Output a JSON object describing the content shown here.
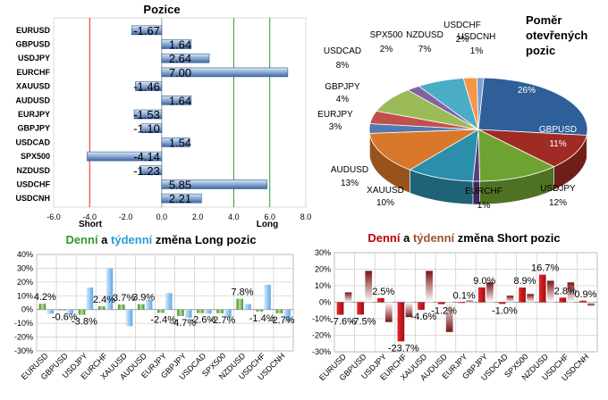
{
  "chart_data": [
    {
      "type": "bar",
      "orientation": "horizontal",
      "title": "Pozice",
      "categories": [
        "EURUSD",
        "GBPUSD",
        "USDJPY",
        "EURCHF",
        "XAUUSD",
        "AUDUSD",
        "EURJPY",
        "GBPJPY",
        "USDCAD",
        "SPX500",
        "NZDUSD",
        "USDCHF",
        "USDCNH"
      ],
      "values": [
        -1.67,
        1.64,
        2.64,
        7.0,
        -1.46,
        1.64,
        -1.53,
        -1.1,
        1.54,
        -4.14,
        -1.23,
        5.85,
        2.21
      ],
      "value_labels": [
        "-1.67",
        "1.64",
        "2.64",
        "7.00",
        "-1.46",
        "1.64",
        "-1.53",
        "-1.10",
        "1.54",
        "-4.14",
        "-1.23",
        "5.85",
        "2.21"
      ],
      "xlim": [
        -6,
        8
      ],
      "ticks": [
        "-6.0",
        "-4.0",
        "-2.0",
        "0.0",
        "2.0",
        "4.0",
        "6.0",
        "8.0"
      ],
      "short_label": "Short",
      "long_label": "Long",
      "bar_color": "#4f81bd"
    },
    {
      "type": "pie",
      "title_lines": [
        "Poměr",
        "otevřených",
        "pozic"
      ],
      "slices": [
        {
          "name": "EURUSD",
          "value": 26,
          "label": "26%",
          "color": "#2e5f99"
        },
        {
          "name": "GBPUSD",
          "value": 11,
          "label": "11%",
          "color": "#a02b24"
        },
        {
          "name": "USDJPY",
          "value": 12,
          "label": "12%",
          "color": "#6fa331"
        },
        {
          "name": "EURCHF",
          "value": 1,
          "label": "1%",
          "color": "#5a3b80"
        },
        {
          "name": "XAUUSD",
          "value": 10,
          "label": "10%",
          "color": "#2b8eaa"
        },
        {
          "name": "AUDUSD",
          "value": 13,
          "label": "13%",
          "color": "#d9772a"
        },
        {
          "name": "EURJPY",
          "value": 3,
          "label": "3%",
          "color": "#5478b0"
        },
        {
          "name": "GBPJPY",
          "value": 4,
          "label": "4%",
          "color": "#c0504d"
        },
        {
          "name": "USDCAD",
          "value": 8,
          "label": "8%",
          "color": "#9bbb59"
        },
        {
          "name": "SPX500",
          "value": 2,
          "label": "2%",
          "color": "#8064a2"
        },
        {
          "name": "NZDUSD",
          "value": 7,
          "label": "7%",
          "color": "#4bacc6"
        },
        {
          "name": "USDCHF",
          "value": 2,
          "label": "2%",
          "color": "#f79646"
        },
        {
          "name": "USDCNH",
          "value": 1,
          "label": "1%",
          "color": "#7f9fd0"
        }
      ]
    },
    {
      "type": "bar",
      "title_parts": [
        "Denní",
        " a ",
        "týdenní",
        " změna Long pozic"
      ],
      "title_colors": [
        "#2e9a2e",
        "#000000",
        "#2d9ad6",
        "#000000"
      ],
      "categories": [
        "EURUSD",
        "GBPUSD",
        "USDJPY",
        "EURCHF",
        "XAUUSD",
        "AUDUSD",
        "EURJPY",
        "GBPJPY",
        "USDCAD",
        "SPX500",
        "NZDUSD",
        "USDCHF",
        "USDCNH"
      ],
      "series": [
        {
          "name": "Denní",
          "color": "#5aa033",
          "values": [
            4.2,
            -0.6,
            -3.8,
            2.4,
            3.7,
            3.9,
            -2.4,
            -4.7,
            -2.6,
            -2.7,
            7.8,
            -1.4,
            -2.7
          ]
        },
        {
          "name": "Týdenní",
          "color": "#6fb3ea",
          "values": [
            -3,
            -3,
            16,
            30,
            -12,
            7,
            12,
            -6,
            -3,
            -6,
            4,
            18,
            -9
          ]
        }
      ],
      "data_labels": [
        "4.2%",
        "-0.6%",
        "-3.8%",
        "2.4%",
        "3.7%",
        "3.9%",
        "-2.4%",
        "-4.7%",
        "-2.6%",
        "-2.7%",
        "7.8%",
        "-1.4%",
        "-2.7%"
      ],
      "ylim": [
        -30,
        40
      ],
      "ticks": [
        "40%",
        "30%",
        "20%",
        "10%",
        "0%",
        "-10%",
        "-20%",
        "-30%"
      ]
    },
    {
      "type": "bar",
      "title_parts": [
        "Denní",
        " a ",
        "týdenní",
        " změna Short pozic"
      ],
      "title_colors": [
        "#c00000",
        "#000000",
        "#a0522d",
        "#000000"
      ],
      "categories": [
        "EURUSD",
        "GBPUSD",
        "USDJPY",
        "EURCHF",
        "XAUUSD",
        "AUDUSD",
        "EURJPY",
        "GBPJPY",
        "USDCAD",
        "SPX500",
        "NZDUSD",
        "USDCHF",
        "USDCNH"
      ],
      "series": [
        {
          "name": "Denní",
          "color": "#c0141b",
          "values": [
            -7.6,
            -7.5,
            2.5,
            -23.7,
            -4.6,
            -1.2,
            0.1,
            9.0,
            -1.0,
            8.9,
            16.7,
            2.8,
            0.9
          ]
        },
        {
          "name": "Týdenní",
          "color": "#8b1a1a",
          "values": [
            6,
            19,
            -12,
            -9,
            19,
            -18,
            1,
            12,
            4,
            5,
            13,
            12,
            -2
          ]
        }
      ],
      "data_labels": [
        "-7.6%",
        "-7.5%",
        "2.5%",
        "-23.7%",
        "-4.6%",
        "-1.2%",
        "0.1%",
        "9.0%",
        "-1.0%",
        "8.9%",
        "16.7%",
        "2.8%",
        "0.9%"
      ],
      "ylim": [
        -30,
        30
      ],
      "ticks": [
        "30%",
        "20%",
        "10%",
        "0%",
        "-10%",
        "-20%",
        "-30%"
      ]
    }
  ]
}
